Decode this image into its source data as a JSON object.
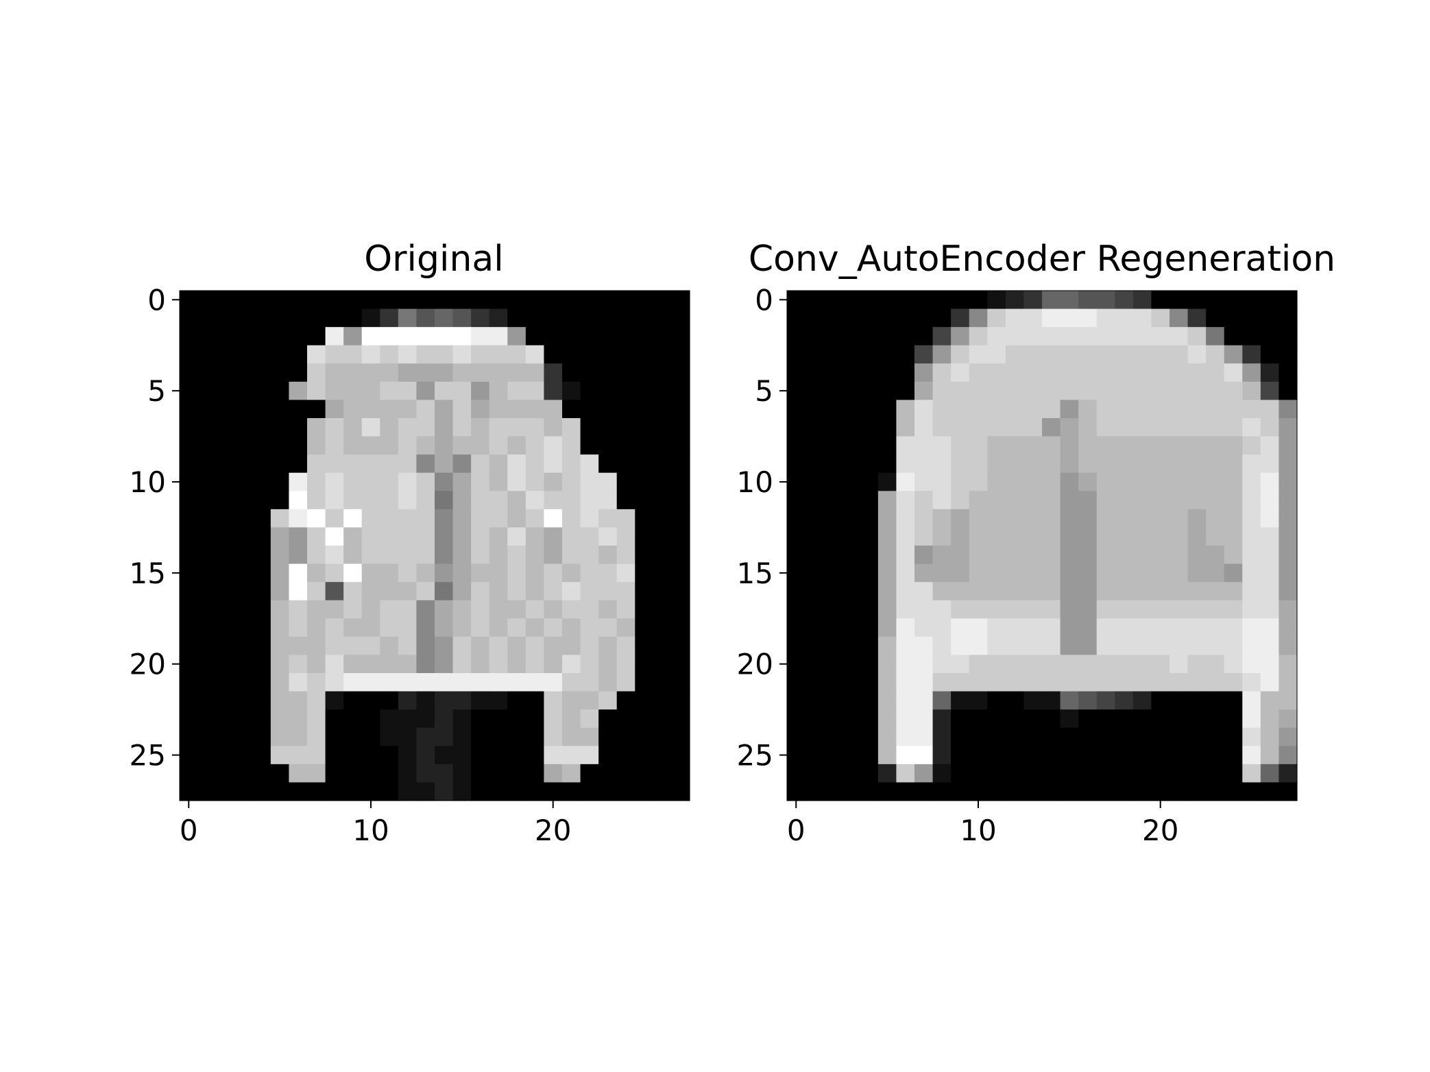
{
  "chart_data": [
    {
      "type": "heatmap",
      "title": "Original",
      "colormap": "gray",
      "value_range": [
        0,
        1
      ],
      "xlim": [
        -0.5,
        27.5
      ],
      "ylim": [
        27.5,
        -0.5
      ],
      "x_ticks": [
        0,
        10,
        20
      ],
      "y_ticks": [
        0,
        5,
        10,
        15,
        20,
        25
      ],
      "x_tick_labels": [
        "0",
        "10",
        "20"
      ],
      "y_tick_labels": [
        "0",
        "5",
        "10",
        "15",
        "20",
        "25"
      ],
      "rows": [
        "0000000000000000000000000000",
        "0000000000137565320000000000",
        "00000000e9ffffffee9000000000",
        "0000000dccdcdccdcccd00000000",
        "0000000cbbbbaaabbbbb30000000",
        "000000acbbbcc9cc9bcc31000000",
        "00000000abbbbcacabbbb0000000",
        "0000000bcbdbccacbcccbc000000",
        "0000000bcbbbcbabbcbcdc000000",
        "0000000cccccc8a8cbdcdcd00000",
        "000000ecdcccdc8acbdcbcdd0000",
        "000000fcdcccdc7accbdccdd0000",
        "00000cefcfcccc8accbcfcdcc000",
        "00000a9cfbcccc8acbdbaccdc000",
        "00000a9cdbcccc8acbcbaccbc000",
        "00000afbcfbbcb9abbcbcbccd000",
        "00000afc5cbbbc7acbcbcdccc000",
        "00000bcbbcbcc8abcbbcbccbc000",
        "00000bcbcbbcc8abcbcbcbccb000",
        "00000bbbcccbc89cbcbcbbcbc000",
        "00000bcbdbbbb89cbcbcbdcbc000",
        "00000bdcdeeeeeeeeeeeeccbc000",
        "00000bbc100021221100cbbc0000",
        "00000bbc000111210000cbc00000",
        "00000bbc000112210000cbb00000",
        "00000ccc000012110000ddd00000",
        "000000bb000012210000ab000000",
        "0000000000001121000000000000"
      ]
    },
    {
      "type": "heatmap",
      "title": "Conv_AutoEncoder Regeneration",
      "colormap": "gray",
      "value_range": [
        0,
        1
      ],
      "xlim": [
        -0.5,
        27.5
      ],
      "ylim": [
        27.5,
        -0.5
      ],
      "x_ticks": [
        0,
        10,
        20
      ],
      "y_ticks": [
        0,
        5,
        10,
        15,
        20,
        25
      ],
      "x_tick_labels": [
        "0",
        "10",
        "20"
      ],
      "y_tick_labels": [
        "0",
        "5",
        "10",
        "15",
        "20",
        "25"
      ],
      "rows": [
        "0000000000012366554300000000",
        "00000000038cddeeedddc8300000",
        "0000000049cdddddddddddc70000",
        "000000049cddccccccccccdc9300",
        "00000009cdccccccccccccccd920",
        "0000000acccccccccccccccccb40",
        "000000bdccccccc9bcccccccccc8",
        "000000bdcccccc9abccccccccdc9",
        "000000dddccbbbbabbbbbbbbbcd9",
        "000000dddccbbbbabbbbbbbbbdd9",
        "000001eddccbbbb9abbbbbbbbde9",
        "00000adcdcbbbbb99bbbbbbbbde9",
        "00000adcbabbbbb99bbbbbabbde9",
        "00000adcbabbbbb99bbbbbabbdd9",
        "00000ad9aabbbbb99bbbbbaabdd9",
        "00000adaaabbbbb99bbbbbaa9dd9",
        "00000addbbbbbbb99bbbbbbbbdd9",
        "00000adddcccccc99ccccccccdda",
        "00000aeddeedddd99ddddddddeea",
        "00000beedeedddd99ddddddddeea",
        "00000beeddcccccccccccdccdeeb",
        "00000beecccccccccccccccccdeb",
        "00000bee61100116543200000ebb",
        "00000bee20000001000000000eba",
        "00000bee20000000000000000db9",
        "00000bff20000000000000000eb8",
        "000002c910000000000000000c62",
        "0000000000000000000000000000"
      ]
    }
  ]
}
